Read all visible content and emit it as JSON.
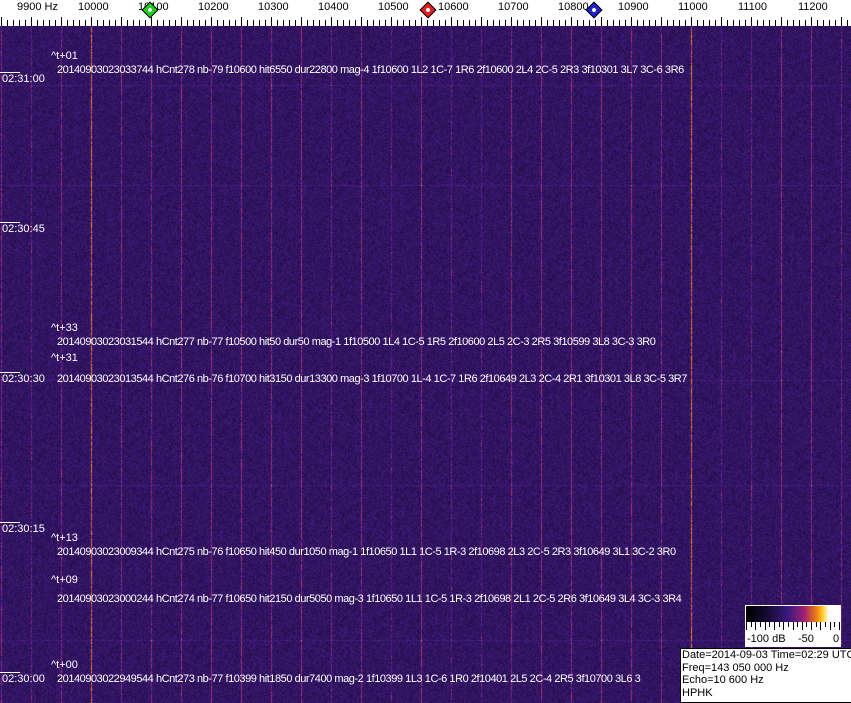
{
  "axis": {
    "unit_label": "9900 Hz",
    "freq_labels": [
      "10000",
      "10100",
      "10200",
      "10300",
      "10400",
      "10500",
      "10600",
      "10700",
      "10800",
      "10900",
      "11000",
      "11100",
      "11200"
    ],
    "markers": [
      {
        "name": "green-marker",
        "freq": 10098,
        "color": "#22cc22"
      },
      {
        "name": "red-marker",
        "freq": 10562,
        "color": "#dd2222"
      },
      {
        "name": "blue-marker",
        "freq": 10838,
        "color": "#2222cc"
      }
    ]
  },
  "time_labels": [
    "02:31:00",
    "02:30:45",
    "02:30:30",
    "02:30:15",
    "02:30:00"
  ],
  "events": [
    {
      "tag": "^t+01",
      "text": "20140903023033744 hCnt278 nb-79 f10600 hit6550 dur22800 mag-4 1f10600 1L2 1C-7 1R6 2f10600 2L4 2C-5 2R3 3f10301 3L7 3C-6 3R6"
    },
    {
      "tag": "^t+33",
      "text": "20140903023031544 hCnt277 nb-77 f10500 hit50 dur50 mag-1 1f10500 1L4 1C-5 1R5 2f10600 2L5 2C-3 2R5 3f10599 3L8 3C-3 3R0"
    },
    {
      "tag": "^t+31",
      "text": "20140903023013544 hCnt276 nb-76 f10700 hit3150 dur13300 mag-3 1f10700 1L-4 1C-7 1R6 2f10649 2L3 2C-4 2R1 3f10301 3L8 3C-5 3R7"
    },
    {
      "tag": "^t+13",
      "text": "20140903023009344 hCnt275 nb-76 f10650 hit450 dur1050 mag-1 1f10650 1L1 1C-5 1R-3 2f10698 2L3 2C-5 2R3 3f10649 3L1 3C-2 3R0"
    },
    {
      "tag": "^t+09",
      "text": "20140903023000244 hCnt274 nb-77 f10650 hit2150 dur5050 mag-3 1f10650 1L1 1C-5 1R-3 2f10698 2L1 2C-5 2R6 3f10649 3L4 3C-3 3R4"
    },
    {
      "tag": "^t+00",
      "text": "20140903022949544 hCnt273 nb-77 f10399 hit1850 dur7400 mag-2 1f10399 1L3 1C-6 1R0 2f10401 2L5 2C-4 2R5 3f10700 3L6 3"
    }
  ],
  "colorbar": {
    "labels": [
      "-100 dB",
      "-50",
      "0"
    ]
  },
  "info": {
    "date_time": "Date=2014-09-03 Time=02:29 UTC",
    "freq": "Freq=143 050 000 Hz",
    "echo": "Echo=10 600 Hz",
    "station": "HPHK"
  }
}
